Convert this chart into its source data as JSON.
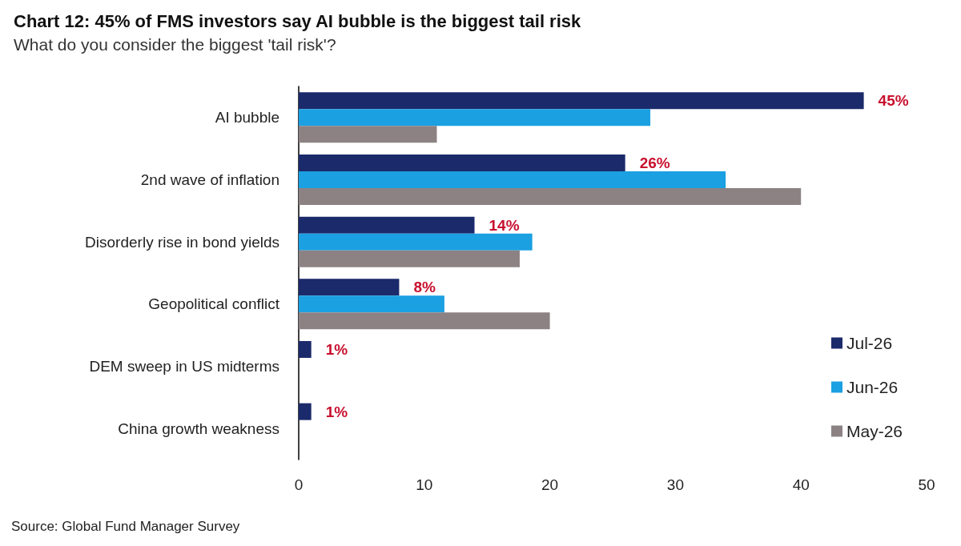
{
  "chart_data": {
    "type": "bar",
    "orientation": "horizontal",
    "title": "Chart 12: 45% of FMS investors say AI bubble is the biggest tail risk",
    "subtitle": "What do you consider the biggest 'tail risk'?",
    "categories": [
      "AI bubble",
      "2nd wave of inflation",
      "Disorderly rise in bond yields",
      "Geopolitical conflict",
      "DEM sweep in US midterms",
      "China growth weakness"
    ],
    "series": [
      {
        "name": "Jul-26",
        "color": "#1b2a6b",
        "values": [
          45,
          26,
          14,
          8,
          1,
          1
        ],
        "value_labels": [
          "45%",
          "26%",
          "14%",
          "8%",
          "1%",
          "1%"
        ]
      },
      {
        "name": "Jun-26",
        "color": "#1ba0e2",
        "values": [
          28,
          34,
          18.6,
          11.6,
          null,
          null
        ]
      },
      {
        "name": "May-26",
        "color": "#8c8284",
        "values": [
          11,
          40,
          17.6,
          20,
          null,
          null
        ]
      }
    ],
    "xlim": [
      0,
      50
    ],
    "xticks": [
      0,
      10,
      20,
      30,
      40,
      50
    ],
    "grid": false,
    "legend": "bottom right",
    "annotations": [
      "Source: Global Fund Manager Survey"
    ]
  }
}
